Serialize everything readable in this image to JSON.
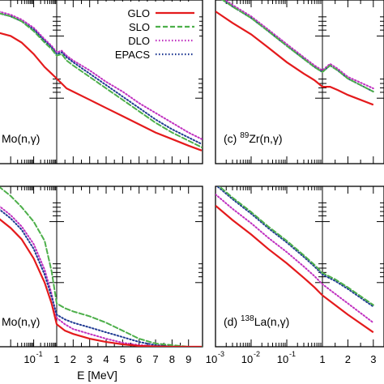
{
  "chart_data": {
    "type": "line",
    "xlabel": "E [MeV]",
    "x_scale": "log below 1 MeV, linear from 1 to 9 MeV",
    "legend": {
      "placement": "top-right of top-left panel",
      "entries": [
        "GLO",
        "SLO",
        "DLO",
        "EPACS"
      ]
    },
    "series_styles": [
      {
        "name": "GLO",
        "color": "#e41a1c",
        "dash": "solid"
      },
      {
        "name": "SLO",
        "color": "#4daf4a",
        "dash": "dashed"
      },
      {
        "name": "DLO",
        "color": "#c030c0",
        "dash": "dotted"
      },
      {
        "name": "EPACS",
        "color": "#1f3a93",
        "dash": "dotted"
      }
    ],
    "panels": [
      {
        "id": "a",
        "label_tail": "Mo(n,γ)",
        "log_tick_labels": [],
        "linear_tick_labels": [],
        "y_relative_scale": [
          0,
          1
        ],
        "series": [
          {
            "name": "GLO",
            "x": [
              0.003,
              0.01,
              0.03,
              0.1,
              0.3,
              0.6,
              1,
              1.3,
              1.6,
              2,
              3,
              4,
              5,
              6,
              7,
              8,
              9,
              9.8
            ],
            "y": [
              0.8,
              0.78,
              0.74,
              0.67,
              0.59,
              0.55,
              0.52,
              0.49,
              0.46,
              0.44,
              0.39,
              0.34,
              0.29,
              0.24,
              0.19,
              0.15,
              0.11,
              0.08
            ]
          },
          {
            "name": "SLO",
            "x": [
              0.003,
              0.01,
              0.03,
              0.1,
              0.3,
              0.6,
              1,
              1.3,
              1.6,
              2,
              3,
              4,
              5,
              6,
              7,
              8,
              9,
              9.8
            ],
            "y": [
              0.92,
              0.9,
              0.87,
              0.81,
              0.74,
              0.7,
              0.66,
              0.67,
              0.63,
              0.6,
              0.53,
              0.46,
              0.39,
              0.32,
              0.25,
              0.19,
              0.14,
              0.1
            ]
          },
          {
            "name": "DLO",
            "x": [
              0.003,
              0.01,
              0.03,
              0.1,
              0.3,
              0.6,
              1,
              1.3,
              1.6,
              2,
              3,
              4,
              5,
              6,
              7,
              8,
              9,
              9.8
            ],
            "y": [
              0.93,
              0.91,
              0.88,
              0.83,
              0.76,
              0.72,
              0.68,
              0.69,
              0.66,
              0.63,
              0.57,
              0.5,
              0.44,
              0.37,
              0.31,
              0.25,
              0.19,
              0.15
            ]
          },
          {
            "name": "EPACS",
            "x": [
              0.003,
              0.01,
              0.03,
              0.1,
              0.3,
              0.6,
              1,
              1.3,
              1.6,
              2,
              3,
              4,
              5,
              6,
              7,
              8,
              9,
              9.8
            ],
            "y": [
              0.92,
              0.9,
              0.87,
              0.82,
              0.75,
              0.71,
              0.67,
              0.68,
              0.65,
              0.62,
              0.55,
              0.48,
              0.41,
              0.34,
              0.27,
              0.21,
              0.16,
              0.12
            ]
          }
        ]
      },
      {
        "id": "c",
        "label_head": "(c) ",
        "label_mass": "89",
        "label_tail": "Zr(n,γ)",
        "log_tick_labels": [],
        "linear_tick_labels": [],
        "y_relative_scale": [
          0,
          1
        ],
        "series": [
          {
            "name": "GLO",
            "x": [
              0.001,
              0.003,
              0.01,
              0.03,
              0.1,
              0.3,
              0.6,
              1,
              1.3,
              1.6,
              2,
              3
            ],
            "y": [
              0.93,
              0.86,
              0.79,
              0.71,
              0.62,
              0.55,
              0.51,
              0.47,
              0.47,
              0.45,
              0.42,
              0.36
            ]
          },
          {
            "name": "SLO",
            "x": [
              0.001,
              0.003,
              0.01,
              0.03,
              0.1,
              0.3,
              0.6,
              1,
              1.3,
              1.6,
              2,
              3
            ],
            "y": [
              1.03,
              0.96,
              0.89,
              0.81,
              0.72,
              0.64,
              0.59,
              0.56,
              0.6,
              0.57,
              0.52,
              0.44
            ]
          },
          {
            "name": "DLO",
            "x": [
              0.001,
              0.003,
              0.01,
              0.03,
              0.1,
              0.3,
              0.6,
              1,
              1.3,
              1.6,
              2,
              3
            ],
            "y": [
              1.04,
              0.97,
              0.9,
              0.82,
              0.73,
              0.65,
              0.6,
              0.57,
              0.61,
              0.58,
              0.53,
              0.46
            ]
          },
          {
            "name": "EPACS",
            "x": [
              0.001,
              0.003,
              0.01,
              0.03,
              0.1,
              0.3,
              0.6,
              1,
              1.3,
              1.6,
              2,
              3
            ],
            "y": [
              1.03,
              0.96,
              0.89,
              0.81,
              0.72,
              0.64,
              0.59,
              0.56,
              0.6,
              0.57,
              0.52,
              0.44
            ]
          }
        ]
      },
      {
        "id": "b",
        "label_tail": "Mo(n,γ)",
        "log_tick_labels": [
          {
            "x": 0.1,
            "mantissa": "10",
            "exp": "-1"
          }
        ],
        "linear_tick_labels": [
          "1",
          "2",
          "3",
          "4",
          "5",
          "6",
          "7",
          "8",
          "9"
        ],
        "y_relative_scale": [
          0,
          1
        ],
        "series": [
          {
            "name": "GLO",
            "x": [
              0.003,
              0.01,
              0.03,
              0.1,
              0.3,
              0.6,
              1,
              1.5,
              2,
              3,
              4,
              5,
              6,
              7,
              8,
              9,
              9.8
            ],
            "y": [
              0.8,
              0.74,
              0.67,
              0.55,
              0.4,
              0.27,
              0.14,
              0.1,
              0.08,
              0.05,
              0.03,
              0.015,
              0.005,
              0.002,
              0,
              0,
              0
            ]
          },
          {
            "name": "SLO",
            "x": [
              0.003,
              0.01,
              0.03,
              0.1,
              0.3,
              0.6,
              1,
              1.5,
              2,
              3,
              4,
              5,
              6,
              7,
              8,
              9,
              9.8
            ],
            "y": [
              1.0,
              0.94,
              0.87,
              0.78,
              0.66,
              0.47,
              0.27,
              0.24,
              0.22,
              0.19,
              0.15,
              0.1,
              0.05,
              0.02,
              0.01,
              0,
              0
            ]
          },
          {
            "name": "DLO",
            "x": [
              0.003,
              0.01,
              0.03,
              0.1,
              0.3,
              0.6,
              1,
              1.5,
              2,
              3,
              4,
              5,
              6,
              7,
              8,
              9,
              9.8
            ],
            "y": [
              0.88,
              0.82,
              0.75,
              0.64,
              0.48,
              0.33,
              0.18,
              0.14,
              0.11,
              0.08,
              0.05,
              0.025,
              0.01,
              0.004,
              0,
              0,
              0
            ]
          },
          {
            "name": "EPACS",
            "x": [
              0.003,
              0.01,
              0.03,
              0.1,
              0.3,
              0.6,
              1,
              1.5,
              2,
              3,
              4,
              5,
              6,
              7,
              8,
              9,
              9.8
            ],
            "y": [
              0.86,
              0.8,
              0.73,
              0.61,
              0.45,
              0.31,
              0.2,
              0.17,
              0.15,
              0.12,
              0.09,
              0.06,
              0.03,
              0.01,
              0.003,
              0,
              0
            ]
          }
        ]
      },
      {
        "id": "d",
        "label_head": "(d) ",
        "label_mass": "138",
        "label_tail": "La(n,γ)",
        "log_tick_labels": [
          {
            "x": 0.001,
            "mantissa": "10",
            "exp": "-3"
          },
          {
            "x": 0.01,
            "mantissa": "10",
            "exp": "-2"
          },
          {
            "x": 0.1,
            "mantissa": "10",
            "exp": "-1"
          }
        ],
        "linear_tick_labels": [
          "1",
          "2",
          "3"
        ],
        "y_relative_scale": [
          0,
          1
        ],
        "series": [
          {
            "name": "GLO",
            "x": [
              0.001,
              0.003,
              0.01,
              0.03,
              0.1,
              0.3,
              0.6,
              1,
              1.5,
              2,
              3
            ],
            "y": [
              0.88,
              0.79,
              0.7,
              0.61,
              0.52,
              0.43,
              0.37,
              0.32,
              0.26,
              0.2,
              0.09
            ]
          },
          {
            "name": "SLO",
            "x": [
              0.001,
              0.003,
              0.01,
              0.03,
              0.1,
              0.3,
              0.6,
              1,
              1.5,
              2,
              3
            ],
            "y": [
              1.02,
              0.93,
              0.84,
              0.75,
              0.66,
              0.57,
              0.51,
              0.46,
              0.42,
              0.37,
              0.26
            ]
          },
          {
            "name": "DLO",
            "x": [
              0.001,
              0.003,
              0.01,
              0.03,
              0.1,
              0.3,
              0.6,
              1,
              1.5,
              2,
              3
            ],
            "y": [
              0.95,
              0.86,
              0.77,
              0.68,
              0.59,
              0.5,
              0.44,
              0.39,
              0.33,
              0.27,
              0.15
            ]
          },
          {
            "name": "EPACS",
            "x": [
              0.001,
              0.003,
              0.01,
              0.03,
              0.1,
              0.3,
              0.6,
              1,
              1.5,
              2,
              3
            ],
            "y": [
              1.01,
              0.92,
              0.83,
              0.74,
              0.65,
              0.56,
              0.5,
              0.45,
              0.41,
              0.36,
              0.25
            ]
          }
        ]
      }
    ]
  }
}
